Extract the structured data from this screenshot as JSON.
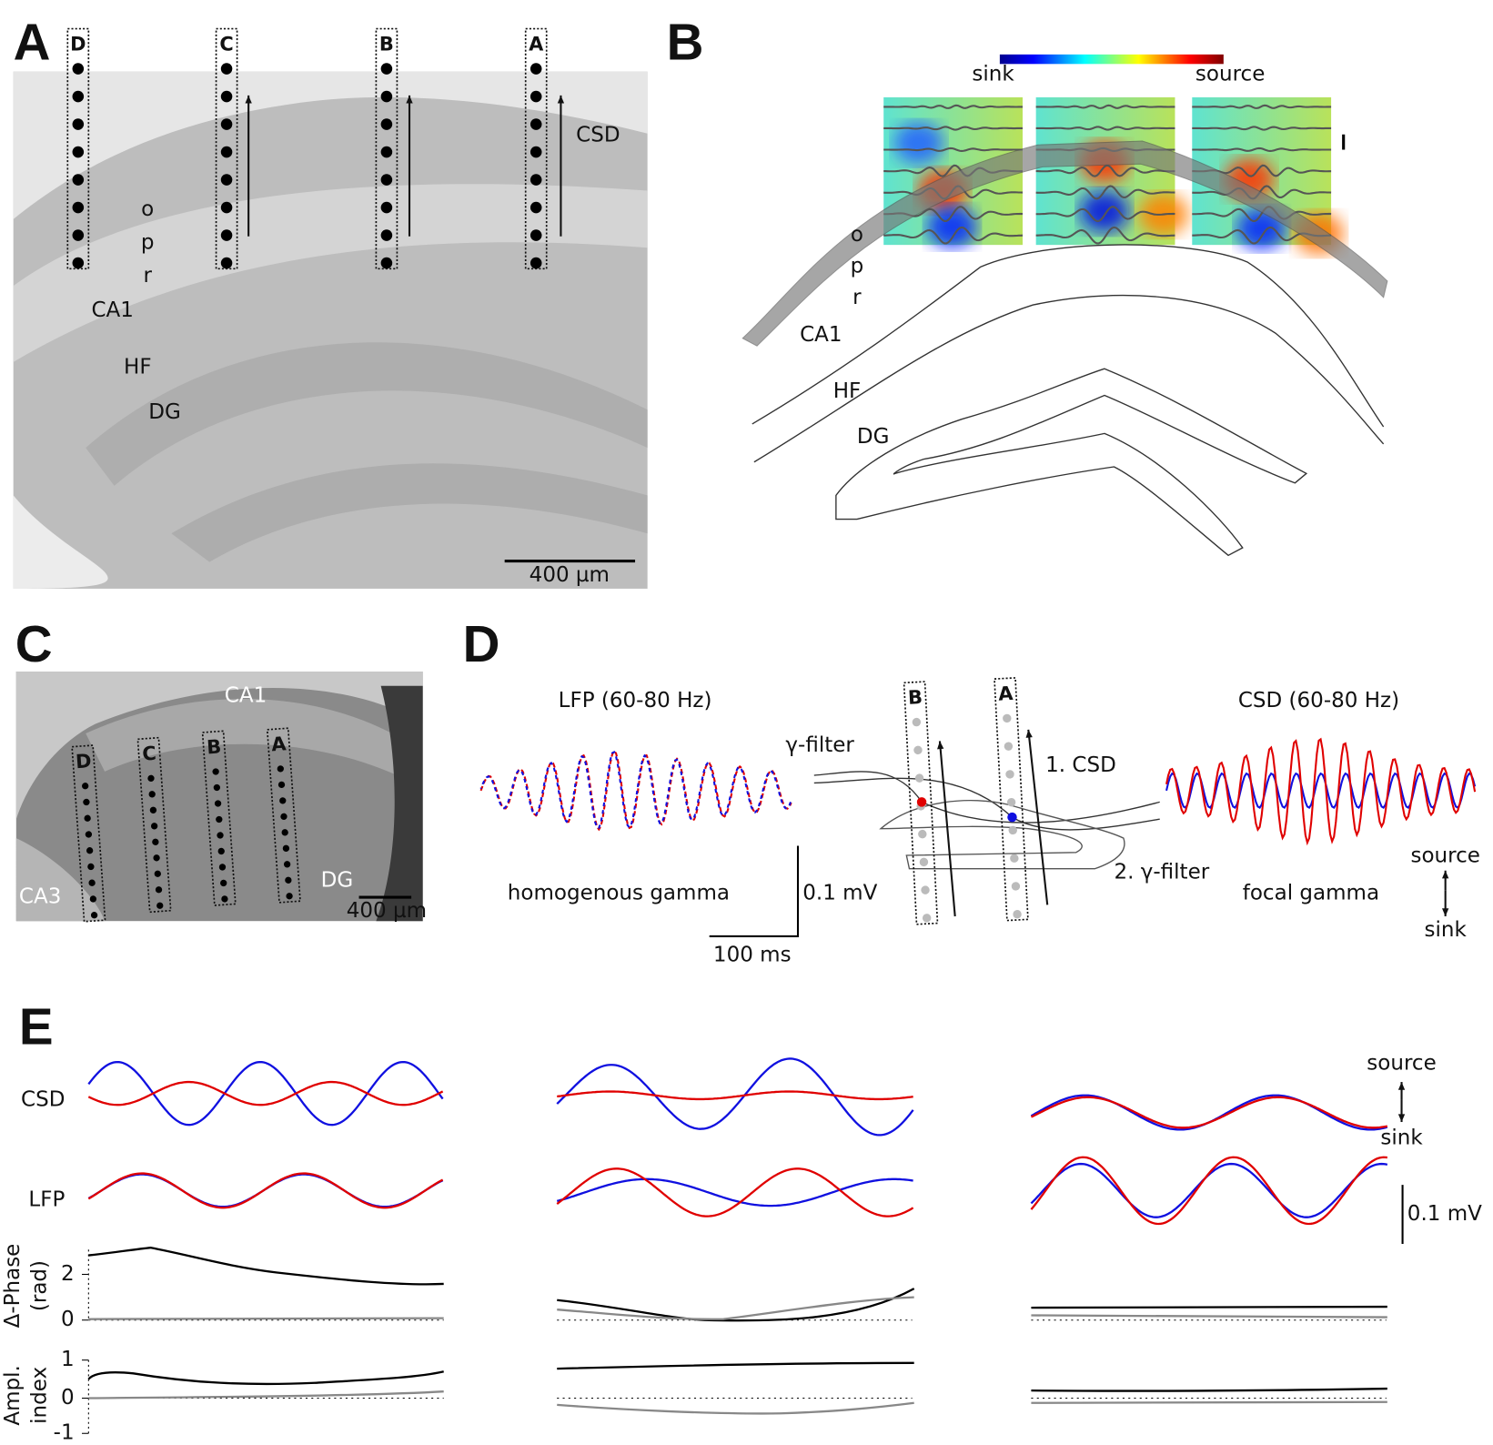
{
  "panels": [
    {
      "label": "A",
      "electrodes": [
        "D",
        "C",
        "B",
        "A"
      ],
      "layers": [
        "o",
        "p",
        "r"
      ],
      "regions": [
        "CA1",
        "HF",
        "DG"
      ],
      "arrow_label": "CSD",
      "scale_bar": "400 µm"
    },
    {
      "label": "B",
      "colorbar_low": "sink",
      "colorbar_high": "source",
      "layers": [
        "o",
        "p",
        "r"
      ],
      "regions": [
        "CA1",
        "HF",
        "DG"
      ]
    },
    {
      "label": "C",
      "electrodes": [
        "D",
        "C",
        "B",
        "A"
      ],
      "regions": [
        "CA1",
        "CA3",
        "DG"
      ],
      "scale_bar": "400 µm"
    },
    {
      "label": "D",
      "lfp_title": "LFP (60-80 Hz)",
      "csd_title": "CSD (60-80 Hz)",
      "filter_label": "γ-filter",
      "step1": "1. CSD",
      "step2": "2. γ-filter",
      "homogenous": "homogenous gamma",
      "focal": "focal gamma",
      "scale_v": "0.1 mV",
      "scale_t": "100 ms",
      "source": "source",
      "sink": "sink",
      "electrodes": [
        "B",
        "A"
      ]
    },
    {
      "label": "E",
      "row_csd": "CSD",
      "row_lfp": "LFP",
      "phase_label": [
        "Δ-Phase",
        "(rad)"
      ],
      "phase_ticks": [
        "2",
        "0"
      ],
      "ampl_label": [
        "Ampl.",
        "index"
      ],
      "ampl_ticks": [
        "1",
        "0",
        "-1"
      ],
      "source": "source",
      "sink": "sink",
      "scale_v": "0.1 mV"
    }
  ]
}
